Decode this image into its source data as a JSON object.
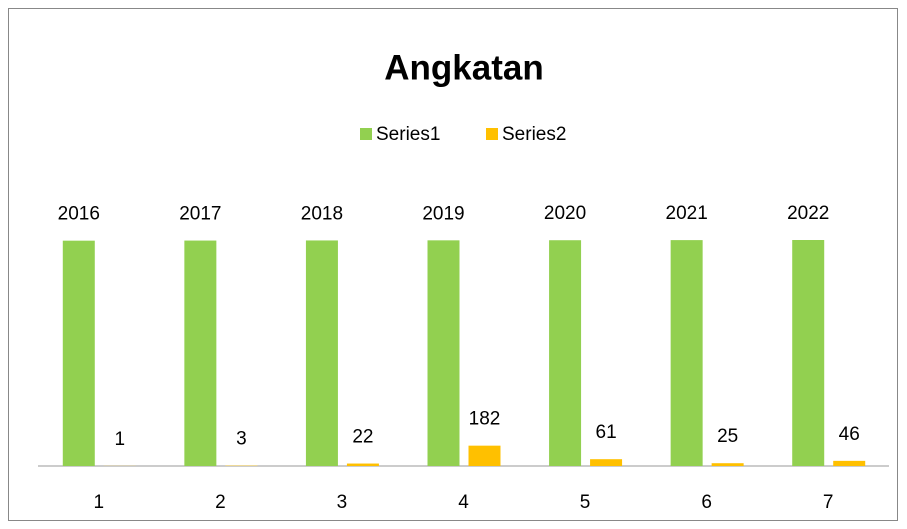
{
  "chart_data": {
    "type": "bar",
    "title": "Angkatan",
    "categories": [
      "1",
      "2",
      "3",
      "4",
      "5",
      "6",
      "7"
    ],
    "series": [
      {
        "name": "Series1",
        "color": "#92d050",
        "values": [
          2016,
          2017,
          2018,
          2019,
          2020,
          2021,
          2022
        ]
      },
      {
        "name": "Series2",
        "color": "#ffc000",
        "values": [
          1,
          3,
          22,
          182,
          61,
          25,
          46
        ]
      }
    ],
    "legend": "top"
  }
}
